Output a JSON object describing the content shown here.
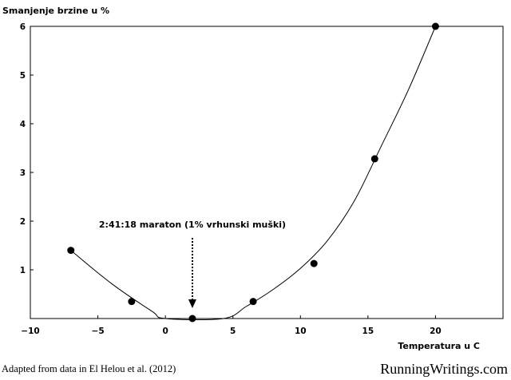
{
  "chart_data": {
    "type": "scatter",
    "ylabel": "Smanjenje brzine u %",
    "xlabel": "Temperatura u C",
    "xlim": [
      -10,
      25
    ],
    "ylim": [
      0,
      6
    ],
    "x_ticks": [
      -10,
      -5,
      0,
      5,
      10,
      15,
      20
    ],
    "y_ticks": [
      1,
      2,
      3,
      4,
      5,
      6
    ],
    "grid": false,
    "points": [
      {
        "x": -7,
        "y": 1.4
      },
      {
        "x": -2.5,
        "y": 0.35
      },
      {
        "x": 2,
        "y": 0
      },
      {
        "x": 6.5,
        "y": 0.35
      },
      {
        "x": 11,
        "y": 1.13
      },
      {
        "x": 15.5,
        "y": 3.28
      },
      {
        "x": 20,
        "y": 6
      }
    ],
    "trend_curve": {
      "type": "smooth-fit",
      "points": [
        {
          "x": -7,
          "y": 1.4
        },
        {
          "x": -4,
          "y": 0.72
        },
        {
          "x": -1,
          "y": 0.15
        },
        {
          "x": 0,
          "y": 0
        },
        {
          "x": 4.3,
          "y": 0
        },
        {
          "x": 6,
          "y": 0.25
        },
        {
          "x": 8,
          "y": 0.6
        },
        {
          "x": 10,
          "y": 1.03
        },
        {
          "x": 12,
          "y": 1.6
        },
        {
          "x": 14,
          "y": 2.42
        },
        {
          "x": 16,
          "y": 3.55
        },
        {
          "x": 18,
          "y": 4.7
        },
        {
          "x": 20,
          "y": 6
        }
      ]
    },
    "annotation": {
      "text": "2:41:18 maraton (1% vrhunski muški)",
      "x": 2,
      "y": 0
    }
  },
  "footer": {
    "source": "Adapted from data in El Helou et al. (2012)",
    "brand": "RunningWritings.com"
  }
}
